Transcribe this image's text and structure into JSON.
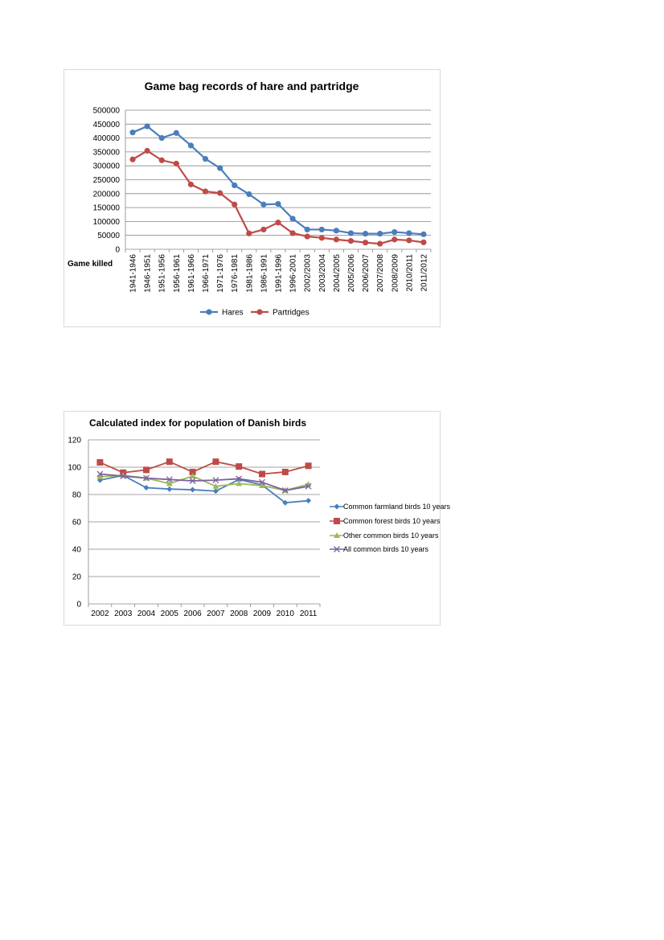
{
  "chart_data": [
    {
      "type": "line",
      "title": "Game bag records of hare and partridge",
      "ylabel": "Game killed",
      "xlabel": "",
      "ylim": [
        0,
        500000
      ],
      "yticks": [
        0,
        50000,
        100000,
        150000,
        200000,
        250000,
        300000,
        350000,
        400000,
        450000,
        500000
      ],
      "grid": true,
      "legend_position": "bottom",
      "categories": [
        "1941-1946",
        "1946-1951",
        "1951-1956",
        "1956-1961",
        "1961-1966",
        "1966-1971",
        "1971-1976",
        "1976-1981",
        "1981-1986",
        "1986-1991",
        "1991-1996",
        "1996-2001",
        "2002/2003",
        "2003/2004",
        "2004/2005",
        "2005/2006",
        "2006/2007",
        "2007/2008",
        "2008/2009",
        "2010/2011",
        "2011/2012"
      ],
      "series": [
        {
          "name": "Hares",
          "color": "#4a7ebb",
          "values": [
            420000,
            442000,
            400000,
            418000,
            373000,
            325000,
            292000,
            230000,
            198000,
            161000,
            163000,
            110000,
            71000,
            71000,
            67000,
            58000,
            56000,
            56000,
            62000,
            58000,
            54000
          ]
        },
        {
          "name": "Partridges",
          "color": "#be4b48",
          "values": [
            323000,
            354000,
            320000,
            308000,
            233000,
            208000,
            202000,
            161000,
            57000,
            71000,
            96000,
            58000,
            46000,
            41000,
            35000,
            30000,
            24000,
            20000,
            35000,
            32000,
            25000
          ]
        }
      ]
    },
    {
      "type": "line",
      "title": "Calculated index for population of Danish birds",
      "xlabel": "",
      "ylabel": "",
      "ylim": [
        0,
        120
      ],
      "yticks": [
        0,
        20,
        40,
        60,
        80,
        100,
        120
      ],
      "grid": true,
      "legend_position": "right",
      "categories": [
        "2002",
        "2003",
        "2004",
        "2005",
        "2006",
        "2007",
        "2008",
        "2009",
        "2010",
        "2011"
      ],
      "series": [
        {
          "name": "Common farmland birds 10 years",
          "color": "#4a7ebb",
          "marker": "diamond",
          "values": [
            90.5,
            94,
            85,
            84,
            83.5,
            82.5,
            91,
            87,
            74,
            75.5
          ]
        },
        {
          "name": "Common forest birds 10 years",
          "color": "#be4b48",
          "marker": "square",
          "values": [
            103.5,
            96,
            98,
            104,
            96.5,
            104,
            100.5,
            95,
            96.5,
            101
          ]
        },
        {
          "name": "Other common birds 10 years",
          "color": "#9bbb59",
          "marker": "triangle",
          "values": [
            93,
            94,
            92,
            88,
            93.5,
            86,
            88,
            86.5,
            83,
            87.5
          ]
        },
        {
          "name": "All common birds 10 years",
          "color": "#7d60a0",
          "marker": "x",
          "values": [
            95,
            93.5,
            92,
            91,
            90,
            90.5,
            91.5,
            89,
            83,
            86
          ]
        }
      ]
    }
  ]
}
